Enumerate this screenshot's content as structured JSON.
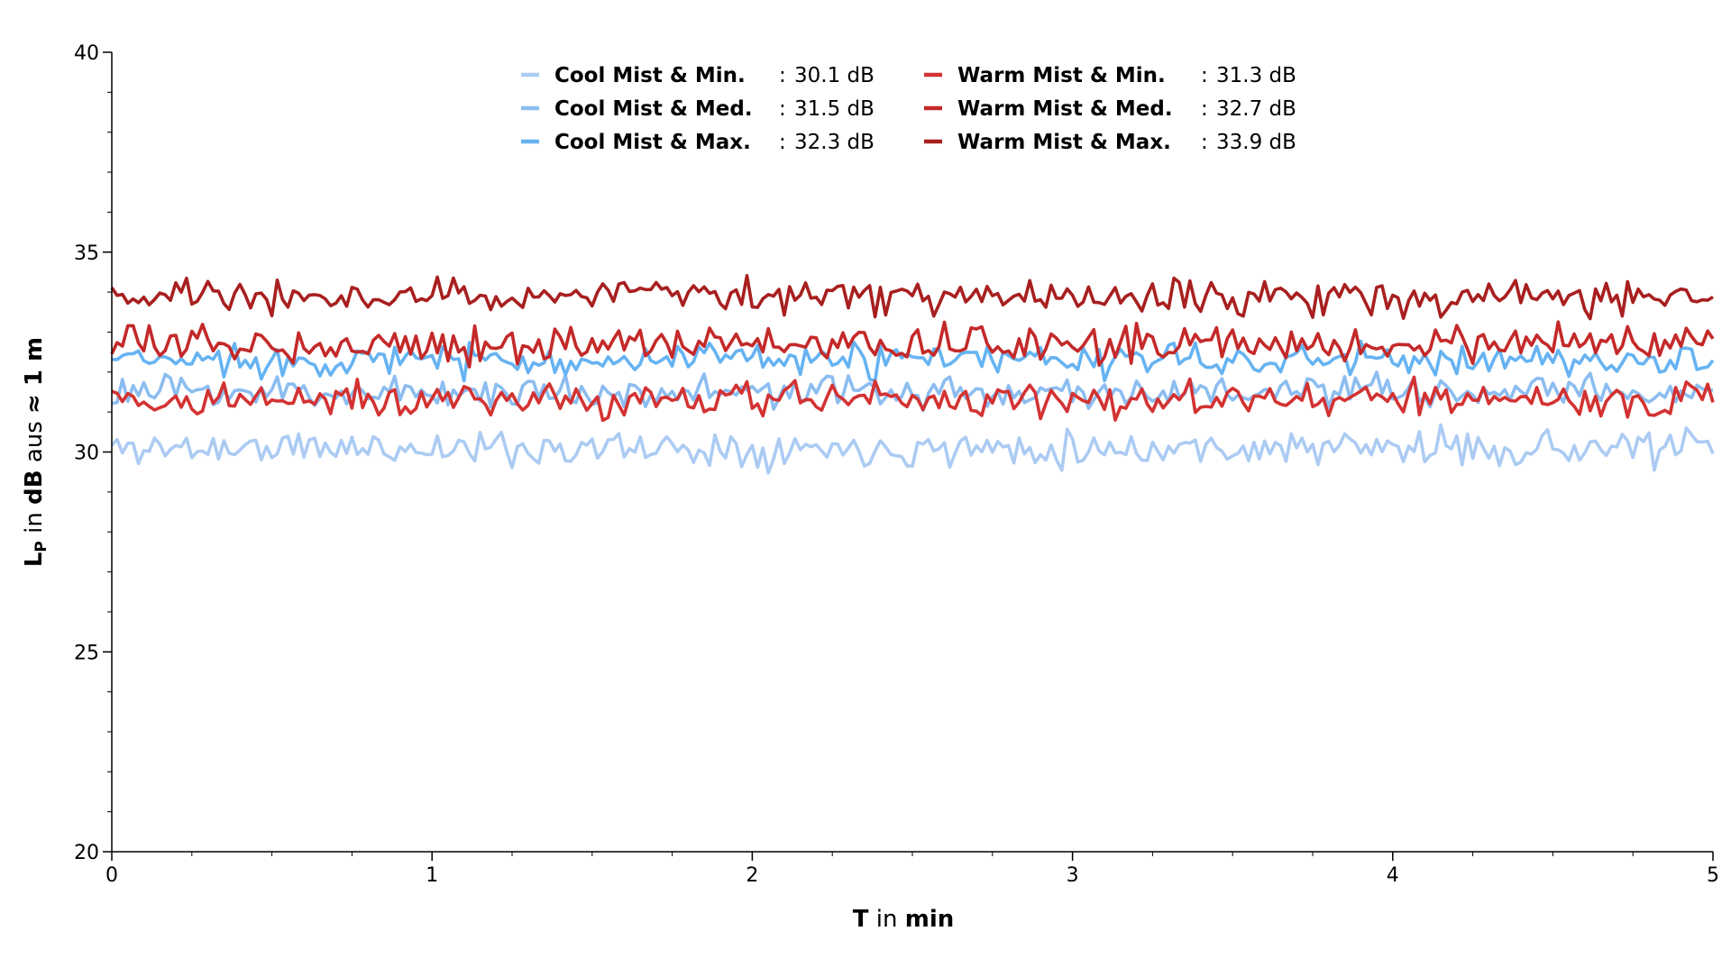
{
  "chart_data": {
    "type": "line",
    "xlabel": {
      "bold": "T",
      "normal": " in ",
      "bold2": "min"
    },
    "ylabel": {
      "main": "L",
      "sub": "P",
      "mid": " in ",
      "bold1": "dB",
      "mid2": " aus ",
      "bold2": "≈ 1 m"
    },
    "xlim": [
      0,
      5
    ],
    "ylim": [
      20,
      40
    ],
    "x_ticks": [
      0,
      1,
      2,
      3,
      4,
      5
    ],
    "y_ticks": [
      20,
      25,
      30,
      35,
      40
    ],
    "x_minor_step": 0.25,
    "y_minor_step": 1,
    "grid": false,
    "legend_position": "top-center",
    "sample_count": 300,
    "series": [
      {
        "name": "Cool Mist & Min.",
        "mean_label": "30.1 dB",
        "mean": 30.1,
        "noise": 0.22,
        "color": "#abcbf3",
        "seed": 11
      },
      {
        "name": "Cool Mist & Med.",
        "mean_label": "31.5 dB",
        "mean": 31.5,
        "noise": 0.2,
        "color": "#8cbdf0",
        "seed": 23
      },
      {
        "name": "Cool Mist & Max.",
        "mean_label": "32.3 dB",
        "mean": 32.3,
        "noise": 0.2,
        "color": "#66b3f2",
        "seed": 37
      },
      {
        "name": "Warm Mist & Min.",
        "mean_label": "31.3 dB",
        "mean": 31.3,
        "noise": 0.22,
        "color": "#d33232",
        "seed": 41
      },
      {
        "name": "Warm Mist & Med.",
        "mean_label": "32.7 dB",
        "mean": 32.7,
        "noise": 0.22,
        "color": "#c42929",
        "seed": 53
      },
      {
        "name": "Warm Mist & Max.",
        "mean_label": "33.9 dB",
        "mean": 33.9,
        "noise": 0.22,
        "color": "#a81f1f",
        "seed": 67
      }
    ],
    "legend_separator": ":"
  }
}
